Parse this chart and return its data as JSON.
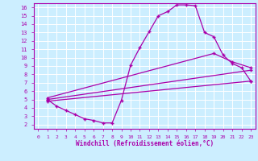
{
  "xlabel": "Windchill (Refroidissement éolien,°C)",
  "bg_color": "#cceeff",
  "line_color": "#aa00aa",
  "grid_color": "#ffffff",
  "xlim": [
    -0.5,
    23.5
  ],
  "ylim": [
    1.5,
    16.5
  ],
  "xticks": [
    0,
    1,
    2,
    3,
    4,
    5,
    6,
    7,
    8,
    9,
    10,
    11,
    12,
    13,
    14,
    15,
    16,
    17,
    18,
    19,
    20,
    21,
    22,
    23
  ],
  "yticks": [
    2,
    3,
    4,
    5,
    6,
    7,
    8,
    9,
    10,
    11,
    12,
    13,
    14,
    15,
    16
  ],
  "curve1_x": [
    1,
    2,
    3,
    4,
    5,
    6,
    7,
    8,
    9,
    10,
    11,
    12,
    13,
    14,
    15,
    16,
    17,
    18,
    19,
    20,
    21,
    22,
    23
  ],
  "curve1_y": [
    5.0,
    4.2,
    3.7,
    3.2,
    2.7,
    2.5,
    2.2,
    2.2,
    4.9,
    9.1,
    11.2,
    13.1,
    15.0,
    15.5,
    16.3,
    16.3,
    16.2,
    13.0,
    12.5,
    10.3,
    9.3,
    8.8,
    7.2
  ],
  "curve2_x": [
    1,
    23
  ],
  "curve2_y": [
    5.0,
    8.5
  ],
  "curve3_x": [
    1,
    19,
    21,
    23
  ],
  "curve3_y": [
    5.2,
    10.5,
    9.5,
    8.8
  ],
  "curve4_x": [
    1,
    23
  ],
  "curve4_y": [
    4.8,
    7.2
  ]
}
